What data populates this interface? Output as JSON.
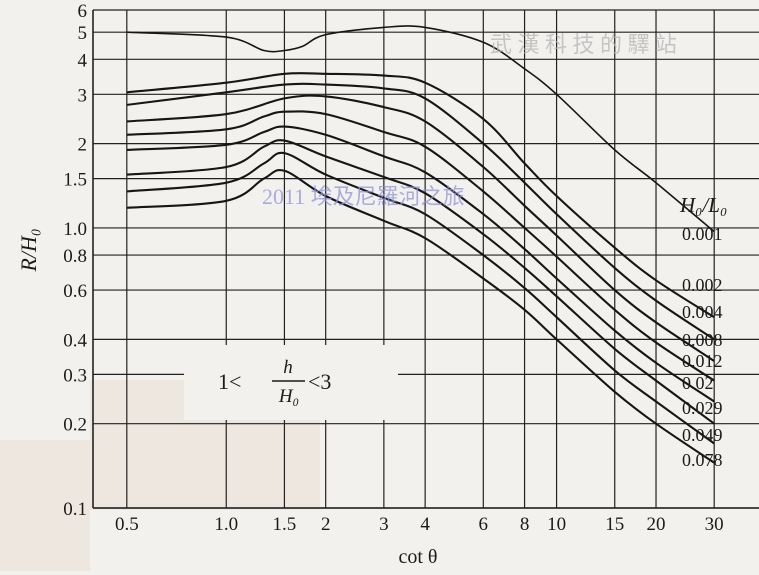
{
  "chart_data": {
    "type": "line",
    "xscale": "log",
    "yscale": "log",
    "xlim": [
      0.5,
      30
    ],
    "ylim": [
      0.1,
      6
    ],
    "xlabel": "cot θ",
    "ylabel": "R/H₀",
    "legend_title": "H₀/L₀",
    "condition_text": {
      "prefix": "1<",
      "numerator": "h",
      "denominator": "H₀",
      "suffix": "<3"
    },
    "x_ticks": [
      {
        "value": 0.5,
        "label": "0.5"
      },
      {
        "value": 1.0,
        "label": "1.0"
      },
      {
        "value": 1.5,
        "label": "1.5"
      },
      {
        "value": 2,
        "label": "2"
      },
      {
        "value": 3,
        "label": "3"
      },
      {
        "value": 4,
        "label": "4"
      },
      {
        "value": 6,
        "label": "6"
      },
      {
        "value": 8,
        "label": "8"
      },
      {
        "value": 10,
        "label": "10"
      },
      {
        "value": 15,
        "label": "15"
      },
      {
        "value": 20,
        "label": "20"
      },
      {
        "value": 30,
        "label": "30"
      }
    ],
    "y_ticks": [
      {
        "value": 0.1,
        "label": "0.1"
      },
      {
        "value": 0.2,
        "label": "0.2"
      },
      {
        "value": 0.3,
        "label": "0.3"
      },
      {
        "value": 0.4,
        "label": "0.4"
      },
      {
        "value": 0.6,
        "label": "0.6"
      },
      {
        "value": 0.8,
        "label": "0.8"
      },
      {
        "value": 1.0,
        "label": "1.0"
      },
      {
        "value": 1.5,
        "label": "1.5"
      },
      {
        "value": 2,
        "label": "2"
      },
      {
        "value": 3,
        "label": "3"
      },
      {
        "value": 4,
        "label": "4"
      },
      {
        "value": 5,
        "label": "5"
      },
      {
        "value": 6,
        "label": "6"
      }
    ],
    "series": [
      {
        "name": "0.001",
        "points": [
          [
            0.5,
            5.0
          ],
          [
            1.0,
            4.8
          ],
          [
            1.3,
            4.3
          ],
          [
            1.5,
            4.3
          ],
          [
            1.7,
            4.45
          ],
          [
            2,
            4.9
          ],
          [
            3,
            5.2
          ],
          [
            4,
            5.2
          ],
          [
            6,
            4.6
          ],
          [
            8,
            3.7
          ],
          [
            10,
            3.0
          ],
          [
            15,
            1.9
          ],
          [
            20,
            1.45
          ],
          [
            30,
            0.97
          ]
        ]
      },
      {
        "name": "0.002",
        "points": [
          [
            0.5,
            3.05
          ],
          [
            1.0,
            3.3
          ],
          [
            1.5,
            3.55
          ],
          [
            2,
            3.55
          ],
          [
            3,
            3.5
          ],
          [
            4,
            3.3
          ],
          [
            6,
            2.45
          ],
          [
            8,
            1.7
          ],
          [
            10,
            1.3
          ],
          [
            15,
            0.85
          ],
          [
            20,
            0.65
          ],
          [
            30,
            0.48
          ]
        ]
      },
      {
        "name": "0.004",
        "points": [
          [
            0.5,
            2.75
          ],
          [
            1.0,
            3.05
          ],
          [
            1.5,
            3.25
          ],
          [
            2,
            3.25
          ],
          [
            3,
            3.15
          ],
          [
            4,
            2.9
          ],
          [
            6,
            2.0
          ],
          [
            8,
            1.45
          ],
          [
            10,
            1.12
          ],
          [
            15,
            0.72
          ],
          [
            20,
            0.55
          ],
          [
            30,
            0.4
          ]
        ]
      },
      {
        "name": "0.008",
        "points": [
          [
            0.5,
            2.4
          ],
          [
            1.0,
            2.55
          ],
          [
            1.5,
            2.9
          ],
          [
            2,
            2.95
          ],
          [
            3,
            2.7
          ],
          [
            4,
            2.4
          ],
          [
            6,
            1.65
          ],
          [
            8,
            1.2
          ],
          [
            10,
            0.94
          ],
          [
            15,
            0.6
          ],
          [
            20,
            0.46
          ],
          [
            30,
            0.335
          ]
        ]
      },
      {
        "name": "0.012",
        "points": [
          [
            0.5,
            2.15
          ],
          [
            1.0,
            2.25
          ],
          [
            1.3,
            2.5
          ],
          [
            1.5,
            2.6
          ],
          [
            2,
            2.55
          ],
          [
            3,
            2.2
          ],
          [
            4,
            1.95
          ],
          [
            6,
            1.35
          ],
          [
            8,
            1.0
          ],
          [
            10,
            0.79
          ],
          [
            15,
            0.51
          ],
          [
            20,
            0.39
          ],
          [
            30,
            0.285
          ]
        ]
      },
      {
        "name": "0.02",
        "points": [
          [
            0.5,
            1.9
          ],
          [
            1.0,
            1.98
          ],
          [
            1.3,
            2.2
          ],
          [
            1.5,
            2.3
          ],
          [
            2,
            2.15
          ],
          [
            3,
            1.8
          ],
          [
            4,
            1.58
          ],
          [
            6,
            1.12
          ],
          [
            8,
            0.84
          ],
          [
            10,
            0.66
          ],
          [
            15,
            0.43
          ],
          [
            20,
            0.33
          ],
          [
            30,
            0.24
          ]
        ]
      },
      {
        "name": "0.029",
        "points": [
          [
            0.5,
            1.55
          ],
          [
            1.0,
            1.65
          ],
          [
            1.3,
            1.95
          ],
          [
            1.5,
            2.05
          ],
          [
            2,
            1.8
          ],
          [
            3,
            1.52
          ],
          [
            4,
            1.33
          ],
          [
            6,
            0.95
          ],
          [
            8,
            0.72
          ],
          [
            10,
            0.57
          ],
          [
            15,
            0.37
          ],
          [
            20,
            0.285
          ],
          [
            30,
            0.2
          ]
        ]
      },
      {
        "name": "0.049",
        "points": [
          [
            0.5,
            1.35
          ],
          [
            1.0,
            1.45
          ],
          [
            1.3,
            1.7
          ],
          [
            1.5,
            1.85
          ],
          [
            2,
            1.55
          ],
          [
            3,
            1.28
          ],
          [
            4,
            1.12
          ],
          [
            6,
            0.8
          ],
          [
            8,
            0.61
          ],
          [
            10,
            0.48
          ],
          [
            15,
            0.31
          ],
          [
            20,
            0.24
          ],
          [
            30,
            0.17
          ]
        ]
      },
      {
        "name": "0.078",
        "points": [
          [
            0.5,
            1.18
          ],
          [
            1.0,
            1.25
          ],
          [
            1.3,
            1.5
          ],
          [
            1.5,
            1.6
          ],
          [
            2,
            1.3
          ],
          [
            3,
            1.06
          ],
          [
            4,
            0.92
          ],
          [
            6,
            0.66
          ],
          [
            8,
            0.51
          ],
          [
            10,
            0.4
          ],
          [
            15,
            0.26
          ],
          [
            20,
            0.2
          ],
          [
            30,
            0.145
          ]
        ]
      }
    ],
    "watermark": "2011 埃及尼羅河之旅",
    "watermark_top": "武 漢 科 技 的 驛 站"
  }
}
